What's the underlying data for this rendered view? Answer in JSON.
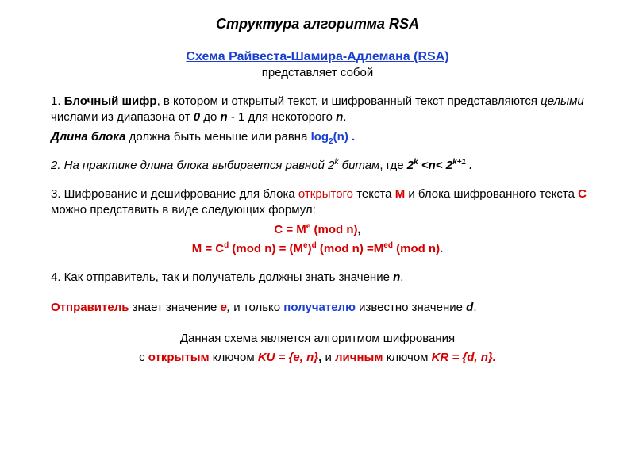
{
  "colors": {
    "text": "#000000",
    "background": "#ffffff",
    "link_blue": "#1a3fcf",
    "accent_red": "#d40000"
  },
  "typography": {
    "family": "Arial",
    "body_size_pt": 11,
    "title_size_pt": 13
  },
  "title": "Структура алгоритма RSA",
  "scheme_link": "Схема Райвеста-Шамира-Адлемана (RSA)",
  "scheme_sub": "представляет собой",
  "p1_lead": "1. ",
  "p1_term": "Блочный шифр",
  "p1_rest1": ", в котором и открытый текст, и шифрованный текст представляются ",
  "p1_ital": "целыми",
  "p1_rest2": " числами из диапазона от ",
  "p1_zero": "0",
  "p1_rest3": " до ",
  "p1_n": "n",
  "p1_rest4": " - 1 для некоторого ",
  "p1_n2": "n",
  "p1_dot": ".",
  "p1b_term": "Длина блока",
  "p1b_rest": " должна быть меньше или равна ",
  "p1b_log": "log",
  "p1b_log_sub": "2",
  "p1b_log_arg": "(n) .",
  "p2_em": "2. На практике длина блока выбирается равной 2",
  "p2_k": "k",
  "p2_em2": "  битам",
  "p2_plain": ", где ",
  "p2_ineq_2k": "2",
  "p2_ineq_k": "k",
  "p2_ineq_mid": " <n< 2",
  "p2_ineq_k1": "k+1",
  "p2_ineq_end": " .",
  "p3_a": "3. Шифрование и дешифрование для блока ",
  "p3_open": "открытого",
  "p3_b": " текста ",
  "p3_M": "M",
  "p3_c": " и блока шифрованного текста ",
  "p3_C": "C",
  "p3_d": " можно представить в виде следующих формул:",
  "formula1_pre": "C = M",
  "formula1_e": "e",
  "formula1_post": " (mod n)",
  "formula1_comma": ",",
  "formula2_a": "M =  C",
  "formula2_d": "d",
  "formula2_b": " (mod n) =  (M",
  "formula2_e": "e",
  "formula2_c": ")",
  "formula2_d2": "d",
  "formula2_dd": " (mod n) =M",
  "formula2_ed": "ed",
  "formula2_end": " (mod n).",
  "p4_a": "4. Как отправитель, так и получатель должны знать значение ",
  "p4_n": "n",
  "p4_dot": ".",
  "p5_sender": "Отправитель",
  "p5_a": " знает значение ",
  "p5_e": "e",
  "p5_comma": ", ",
  "p5_only": "и только ",
  "p5_recv": "получателю",
  "p5_b": " известно значение ",
  "p5_d": "d",
  "p5_dot": ".",
  "p6_a": "Данная схема является алгоритмом шифрования",
  "p6_b1": "с ",
  "p6_open": "открытым",
  "p6_b2": " ключом ",
  "p6_KU": "KU = {e, n}",
  "p6_comma": ",",
  "p6_and": "  и ",
  "p6_priv": "личным",
  "p6_b3": " ключом ",
  "p6_KR": "KR = {d, n}."
}
